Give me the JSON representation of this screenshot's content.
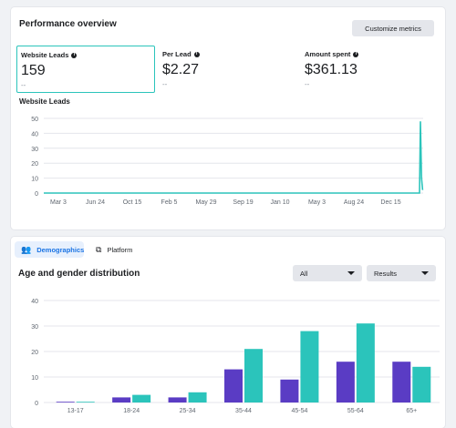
{
  "overview": {
    "title": "Performance overview",
    "customize_label": "Customize metrics",
    "metrics": [
      {
        "label": "Website Leads",
        "value": "159",
        "sub": "--"
      },
      {
        "label": "Per Lead",
        "value": "$2.27",
        "sub": "--"
      },
      {
        "label": "Amount spent",
        "value": "$361.13",
        "sub": "--"
      }
    ],
    "chart_title": "Website Leads"
  },
  "demographics": {
    "tabs": [
      {
        "label": "Demographics",
        "icon": "people-icon"
      },
      {
        "label": "Platform",
        "icon": "platform-icon"
      }
    ],
    "title": "Age and gender distribution",
    "filter_all": "All",
    "filter_results": "Results"
  },
  "colors": {
    "accent": "#2bc4bb",
    "purple": "#5a3cc4",
    "blue": "#1b74e4"
  },
  "chart_data": [
    {
      "type": "line",
      "title": "Website Leads",
      "x_ticks": [
        "Mar 3",
        "Jun 24",
        "Oct 15",
        "Feb 5",
        "May 29",
        "Sep 19",
        "Jan 10",
        "May 3",
        "Aug 24",
        "Dec 15"
      ],
      "y_ticks": [
        0,
        10,
        20,
        30,
        40,
        50
      ],
      "ylim": [
        0,
        50
      ],
      "series": [
        {
          "values": [
            0,
            0,
            0,
            0,
            0,
            0,
            0,
            0,
            0,
            0,
            0,
            0,
            0,
            0,
            0,
            0,
            0,
            0,
            0,
            0,
            0,
            0,
            0,
            0,
            0,
            0,
            0,
            0,
            0,
            0,
            0,
            0,
            0,
            0,
            0,
            0,
            0,
            0,
            0,
            48,
            10,
            2
          ]
        }
      ],
      "grid": true
    },
    {
      "type": "bar",
      "title": "Age and gender distribution",
      "categories": [
        "13-17",
        "18-24",
        "25-34",
        "35-44",
        "45-54",
        "55-64",
        "65+"
      ],
      "series": [
        {
          "values": [
            0,
            2,
            2,
            13,
            9,
            16,
            16
          ],
          "color": "#5a3cc4"
        },
        {
          "values": [
            0,
            3,
            4,
            21,
            28,
            31,
            14
          ],
          "color": "#2bc4bb"
        }
      ],
      "y_ticks": [
        0,
        10,
        20,
        30,
        40
      ],
      "ylim": [
        0,
        40
      ],
      "grid": true
    }
  ]
}
